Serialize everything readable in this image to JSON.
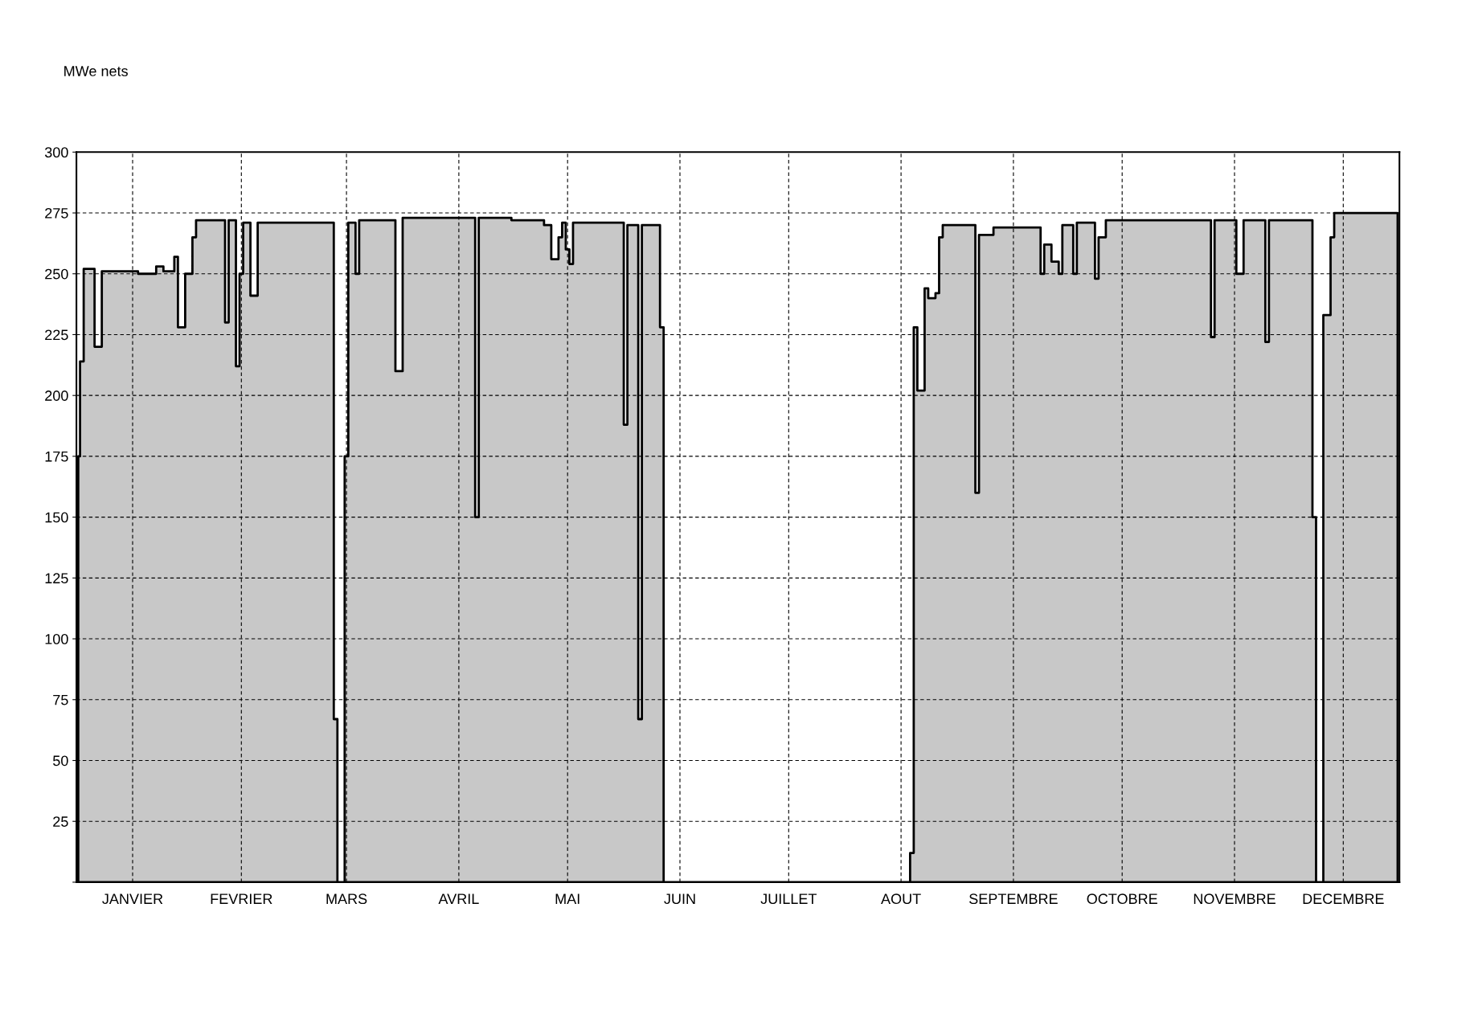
{
  "chart_data": {
    "type": "area",
    "ylabel": "MWe nets",
    "categories": [
      null,
      null,
      null,
      null,
      null,
      null,
      null,
      null,
      null,
      null,
      null,
      null,
      null,
      null,
      null,
      "JANVIER",
      null,
      null,
      null,
      null,
      null,
      null,
      null,
      null,
      null,
      null,
      null,
      null,
      null,
      null,
      null,
      null,
      null,
      null,
      null,
      null,
      null,
      null,
      null,
      null,
      null,
      null,
      null,
      null,
      null,
      "FEVRIER",
      null,
      null,
      null,
      null,
      null,
      null,
      null,
      null,
      null,
      null,
      null,
      null,
      null,
      null,
      null,
      null,
      null,
      null,
      null,
      null,
      null,
      null,
      null,
      null,
      null,
      null,
      null,
      null,
      "MARS",
      null,
      null,
      null,
      null,
      null,
      null,
      null,
      null,
      null,
      null,
      null,
      null,
      null,
      null,
      null,
      null,
      null,
      null,
      null,
      null,
      null,
      null,
      null,
      null,
      null,
      null,
      null,
      null,
      null,
      null,
      "AVRIL",
      null,
      null,
      null,
      null,
      null,
      null,
      null,
      null,
      null,
      null,
      null,
      null,
      null,
      null,
      null,
      null,
      null,
      null,
      null,
      null,
      null,
      null,
      null,
      null,
      null,
      null,
      null,
      null,
      null,
      "MAI",
      null,
      null,
      null,
      null,
      null,
      null,
      null,
      null,
      null,
      null,
      null,
      null,
      null,
      null,
      null,
      null,
      null,
      null,
      null,
      null,
      null,
      null,
      null,
      null,
      null,
      null,
      null,
      null,
      null,
      null,
      "JUIN",
      null,
      null,
      null,
      null,
      null,
      null,
      null,
      null,
      null,
      null,
      null,
      null,
      null,
      null,
      null,
      null,
      null,
      null,
      null,
      null,
      null,
      null,
      null,
      null,
      null,
      null,
      null,
      null,
      null,
      "JUILLET",
      null,
      null,
      null,
      null,
      null,
      null,
      null,
      null,
      null,
      null,
      null,
      null,
      null,
      null,
      null,
      null,
      null,
      null,
      null,
      null,
      null,
      null,
      null,
      null,
      null,
      null,
      null,
      null,
      null,
      null,
      "AOUT",
      null,
      null,
      null,
      null,
      null,
      null,
      null,
      null,
      null,
      null,
      null,
      null,
      null,
      null,
      null,
      null,
      null,
      null,
      null,
      null,
      null,
      null,
      null,
      null,
      null,
      null,
      null,
      null,
      null,
      null,
      "SEPTEMBRE",
      null,
      null,
      null,
      null,
      null,
      null,
      null,
      null,
      null,
      null,
      null,
      null,
      null,
      null,
      null,
      null,
      null,
      null,
      null,
      null,
      null,
      null,
      null,
      null,
      null,
      null,
      null,
      null,
      null,
      "OCTOBRE",
      null,
      null,
      null,
      null,
      null,
      null,
      null,
      null,
      null,
      null,
      null,
      null,
      null,
      null,
      null,
      null,
      null,
      null,
      null,
      null,
      null,
      null,
      null,
      null,
      null,
      null,
      null,
      null,
      null,
      null,
      "NOVEMBRE",
      null,
      null,
      null,
      null,
      null,
      null,
      null,
      null,
      null,
      null,
      null,
      null,
      null,
      null,
      null,
      null,
      null,
      null,
      null,
      null,
      null,
      null,
      null,
      null,
      null,
      null,
      null,
      null,
      null,
      "DECEMBRE",
      null,
      null,
      null,
      null,
      null,
      null,
      null,
      null,
      null,
      null,
      null,
      null,
      null,
      null,
      null
    ],
    "series": [
      {
        "color": "#c8c8c8",
        "values": [
          175,
          214,
          252,
          252,
          252,
          220,
          220,
          251,
          251,
          251,
          251,
          251,
          251,
          251,
          251,
          251,
          251,
          250,
          250,
          250,
          250,
          250,
          253,
          253,
          251,
          251,
          251,
          257,
          228,
          228,
          250,
          250,
          265,
          272,
          272,
          272,
          272,
          272,
          272,
          272,
          272,
          230,
          272,
          272,
          212,
          250,
          271,
          271,
          241,
          241,
          271,
          271,
          271,
          271,
          271,
          271,
          271,
          271,
          271,
          271,
          271,
          271,
          271,
          271,
          271,
          271,
          271,
          271,
          271,
          271,
          271,
          67,
          0,
          0,
          175,
          271,
          271,
          250,
          272,
          272,
          272,
          272,
          272,
          272,
          272,
          272,
          272,
          272,
          210,
          210,
          273,
          273,
          273,
          273,
          273,
          273,
          273,
          273,
          273,
          273,
          273,
          273,
          273,
          273,
          273,
          273,
          273,
          273,
          273,
          273,
          150,
          273,
          273,
          273,
          273,
          273,
          273,
          273,
          273,
          273,
          272,
          272,
          272,
          272,
          272,
          272,
          272,
          272,
          272,
          270,
          270,
          256,
          256,
          265,
          271,
          260,
          254,
          271,
          271,
          271,
          271,
          271,
          271,
          271,
          271,
          271,
          271,
          271,
          271,
          271,
          271,
          188,
          270,
          270,
          270,
          67,
          270,
          270,
          270,
          270,
          270,
          228,
          0,
          0,
          0,
          0,
          0,
          0,
          0,
          0,
          0,
          0,
          0,
          0,
          0,
          0,
          0,
          0,
          0,
          0,
          0,
          0,
          0,
          0,
          0,
          0,
          0,
          0,
          0,
          0,
          0,
          0,
          0,
          0,
          0,
          0,
          0,
          0,
          0,
          0,
          0,
          0,
          0,
          0,
          0,
          0,
          0,
          0,
          0,
          0,
          0,
          0,
          0,
          0,
          0,
          0,
          0,
          0,
          0,
          0,
          0,
          0,
          0,
          0,
          0,
          0,
          0,
          0,
          0,
          0,
          12,
          228,
          202,
          202,
          244,
          240,
          240,
          242,
          265,
          270,
          270,
          270,
          270,
          270,
          270,
          270,
          270,
          270,
          160,
          266,
          266,
          266,
          266,
          269,
          269,
          269,
          269,
          269,
          269,
          269,
          269,
          269,
          269,
          269,
          269,
          269,
          250,
          262,
          262,
          255,
          255,
          250,
          270,
          270,
          270,
          250,
          271,
          271,
          271,
          271,
          271,
          248,
          265,
          265,
          272,
          272,
          272,
          272,
          272,
          272,
          272,
          272,
          272,
          272,
          272,
          272,
          272,
          272,
          272,
          272,
          272,
          272,
          272,
          272,
          272,
          272,
          272,
          272,
          272,
          272,
          272,
          272,
          272,
          224,
          272,
          272,
          272,
          272,
          272,
          272,
          250,
          250,
          272,
          272,
          272,
          272,
          272,
          272,
          222,
          272,
          272,
          272,
          272,
          272,
          272,
          272,
          272,
          272,
          272,
          272,
          272,
          150,
          0,
          0,
          233,
          233,
          265,
          275,
          275,
          275,
          275,
          275,
          275,
          275,
          275,
          275,
          275,
          275,
          275,
          275,
          275,
          275,
          275,
          275,
          275
        ]
      }
    ],
    "ylim": [
      0,
      300
    ],
    "yticks": [
      {
        "value": 0,
        "label": null
      },
      25,
      50,
      75,
      100,
      125,
      150,
      175,
      200,
      225,
      250,
      275,
      300
    ],
    "grid": true
  }
}
